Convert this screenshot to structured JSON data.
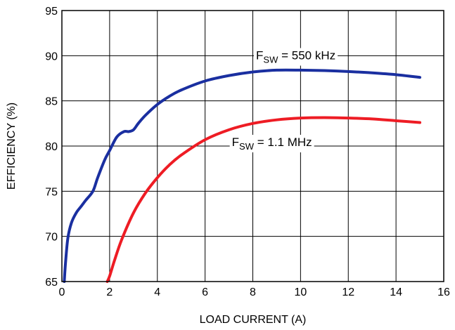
{
  "chart_data": {
    "type": "line",
    "title": "",
    "xlabel": "LOAD CURRENT (A)",
    "ylabel": "EFFICIENCY (%)",
    "xlim": [
      0,
      16
    ],
    "ylim": [
      65,
      95
    ],
    "xticks": [
      0,
      2,
      4,
      6,
      8,
      10,
      12,
      14,
      16
    ],
    "yticks": [
      65,
      70,
      75,
      80,
      85,
      90,
      95
    ],
    "grid": true,
    "series": [
      {
        "name": "FSW = 550 kHz",
        "label_main": "F",
        "label_sub": "SW",
        "label_rest": " = 550 kHz",
        "color": "#1a2fa0",
        "x": [
          0.1,
          0.15,
          0.25,
          0.4,
          0.6,
          0.8,
          1.0,
          1.3,
          1.5,
          1.8,
          2.0,
          2.3,
          2.6,
          2.8,
          3.0,
          3.2,
          3.5,
          4.0,
          4.5,
          5.0,
          6.0,
          7.0,
          8.0,
          9.0,
          10.0,
          11.0,
          12.0,
          13.0,
          14.0,
          15.0
        ],
        "y": [
          65,
          67,
          69.8,
          71.5,
          72.6,
          73.3,
          74.0,
          75.0,
          76.5,
          78.5,
          79.5,
          81.0,
          81.6,
          81.6,
          81.8,
          82.5,
          83.4,
          84.6,
          85.5,
          86.2,
          87.2,
          87.8,
          88.2,
          88.4,
          88.4,
          88.35,
          88.25,
          88.1,
          87.9,
          87.6
        ]
      },
      {
        "name": "FSW = 1.1 MHz",
        "label_main": "F",
        "label_sub": "SW",
        "label_rest": " = 1.1 MHz",
        "color": "#ee1c24",
        "x": [
          1.9,
          2.0,
          2.2,
          2.5,
          3.0,
          3.5,
          4.0,
          4.5,
          5.0,
          6.0,
          7.0,
          8.0,
          9.0,
          10.0,
          11.0,
          12.0,
          13.0,
          14.0,
          15.0
        ],
        "y": [
          65,
          65.6,
          67.3,
          69.6,
          72.6,
          74.8,
          76.5,
          77.9,
          79.0,
          80.7,
          81.8,
          82.5,
          82.9,
          83.1,
          83.15,
          83.1,
          83.0,
          82.8,
          82.6
        ]
      }
    ],
    "annotations": [
      {
        "series": 0,
        "x": 9.8,
        "y": 89.6
      },
      {
        "series": 1,
        "x": 8.8,
        "y": 80.0
      }
    ]
  }
}
